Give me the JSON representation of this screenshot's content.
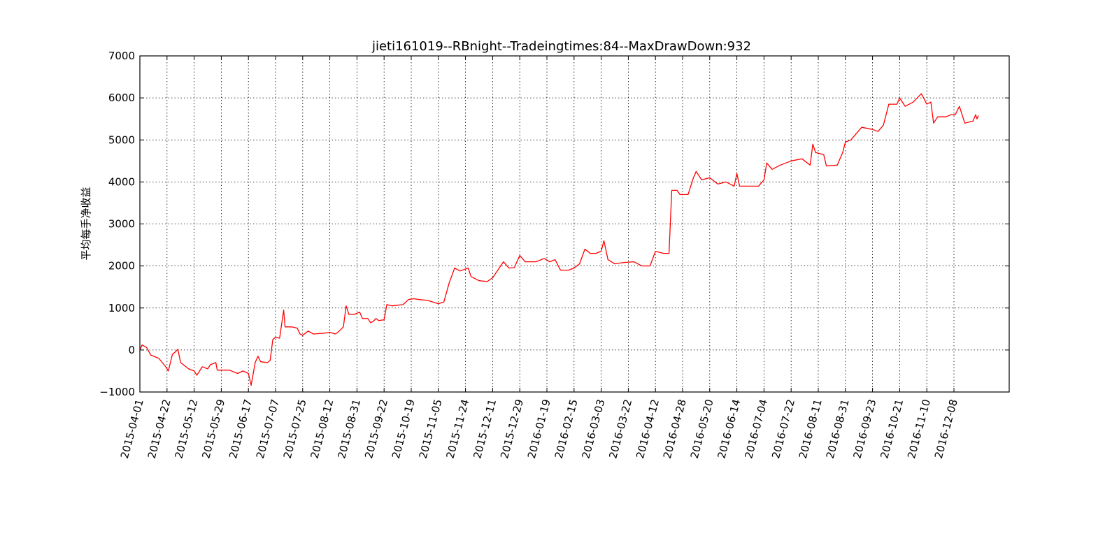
{
  "chart_data": {
    "type": "line",
    "title": "jieti161019--RBnight--Tradeingtimes:84--MaxDrawDown:932",
    "xlabel": "",
    "ylabel": "平均每手净收益",
    "ylim": [
      -1000,
      7000
    ],
    "yticks": [
      -1000,
      0,
      1000,
      2000,
      3000,
      4000,
      5000,
      6000,
      7000
    ],
    "ytick_labels": [
      "−1000",
      "0",
      "1000",
      "2000",
      "3000",
      "4000",
      "5000",
      "6000",
      "7000"
    ],
    "xticks": [
      "2015-04-01",
      "2015-04-22",
      "2015-05-12",
      "2015-05-29",
      "2015-06-17",
      "2015-07-07",
      "2015-07-25",
      "2015-08-12",
      "2015-08-31",
      "2015-09-22",
      "2015-10-19",
      "2015-11-05",
      "2015-11-24",
      "2015-12-11",
      "2015-12-29",
      "2016-01-19",
      "2016-02-15",
      "2016-03-03",
      "2016-03-22",
      "2016-04-12",
      "2016-04-28",
      "2016-05-20",
      "2016-06-14",
      "2016-07-04",
      "2016-07-22",
      "2016-08-11",
      "2016-08-31",
      "2016-09-23",
      "2016-10-21",
      "2016-11-10",
      "2016-12-08"
    ],
    "grid": true,
    "line_color": "#ff0000",
    "series": [
      {
        "values": [
          [
            0,
            0
          ],
          [
            0.08,
            120
          ],
          [
            0.25,
            60
          ],
          [
            0.4,
            -120
          ],
          [
            0.7,
            -200
          ],
          [
            0.95,
            -400
          ],
          [
            1.05,
            -500
          ],
          [
            1.2,
            -100
          ],
          [
            1.3,
            -50
          ],
          [
            1.4,
            20
          ],
          [
            1.5,
            -300
          ],
          [
            1.8,
            -450
          ],
          [
            2.0,
            -500
          ],
          [
            2.1,
            -600
          ],
          [
            2.3,
            -400
          ],
          [
            2.5,
            -450
          ],
          [
            2.6,
            -350
          ],
          [
            2.8,
            -300
          ],
          [
            2.85,
            -480
          ],
          [
            3.3,
            -480
          ],
          [
            3.6,
            -560
          ],
          [
            3.8,
            -500
          ],
          [
            4.0,
            -560
          ],
          [
            4.1,
            -840
          ],
          [
            4.25,
            -300
          ],
          [
            4.35,
            -150
          ],
          [
            4.45,
            -280
          ],
          [
            4.7,
            -300
          ],
          [
            4.8,
            -250
          ],
          [
            4.9,
            250
          ],
          [
            5.0,
            300
          ],
          [
            5.15,
            280
          ],
          [
            5.3,
            950
          ],
          [
            5.35,
            550
          ],
          [
            5.6,
            550
          ],
          [
            5.8,
            520
          ],
          [
            5.9,
            380
          ],
          [
            6.0,
            350
          ],
          [
            6.2,
            450
          ],
          [
            6.4,
            380
          ],
          [
            6.8,
            400
          ],
          [
            7.0,
            420
          ],
          [
            7.2,
            380
          ],
          [
            7.3,
            420
          ],
          [
            7.5,
            550
          ],
          [
            7.6,
            1050
          ],
          [
            7.7,
            850
          ],
          [
            7.9,
            850
          ],
          [
            8.1,
            900
          ],
          [
            8.2,
            750
          ],
          [
            8.4,
            750
          ],
          [
            8.5,
            650
          ],
          [
            8.6,
            680
          ],
          [
            8.7,
            750
          ],
          [
            8.8,
            700
          ],
          [
            9.0,
            720
          ],
          [
            9.1,
            1080
          ],
          [
            9.3,
            1050
          ],
          [
            9.7,
            1080
          ],
          [
            9.9,
            1200
          ],
          [
            10.1,
            1220
          ],
          [
            10.3,
            1200
          ],
          [
            10.6,
            1180
          ],
          [
            10.9,
            1120
          ],
          [
            11.0,
            1100
          ],
          [
            11.2,
            1140
          ],
          [
            11.4,
            1600
          ],
          [
            11.6,
            1950
          ],
          [
            11.8,
            1880
          ],
          [
            12.1,
            1950
          ],
          [
            12.2,
            1750
          ],
          [
            12.5,
            1650
          ],
          [
            12.8,
            1630
          ],
          [
            13.0,
            1720
          ],
          [
            13.4,
            2100
          ],
          [
            13.6,
            1950
          ],
          [
            13.8,
            1960
          ],
          [
            14.0,
            2250
          ],
          [
            14.2,
            2100
          ],
          [
            14.6,
            2100
          ],
          [
            14.9,
            2180
          ],
          [
            15.1,
            2100
          ],
          [
            15.3,
            2150
          ],
          [
            15.5,
            1900
          ],
          [
            15.8,
            1900
          ],
          [
            16.0,
            1950
          ],
          [
            16.2,
            2050
          ],
          [
            16.4,
            2400
          ],
          [
            16.6,
            2300
          ],
          [
            16.8,
            2300
          ],
          [
            17.0,
            2350
          ],
          [
            17.1,
            2600
          ],
          [
            17.25,
            2150
          ],
          [
            17.5,
            2050
          ],
          [
            17.8,
            2080
          ],
          [
            18.2,
            2100
          ],
          [
            18.5,
            2000
          ],
          [
            18.8,
            2000
          ],
          [
            19.0,
            2350
          ],
          [
            19.3,
            2300
          ],
          [
            19.5,
            2300
          ],
          [
            19.6,
            3800
          ],
          [
            19.8,
            3800
          ],
          [
            19.9,
            3700
          ],
          [
            20.2,
            3700
          ],
          [
            20.4,
            4100
          ],
          [
            20.5,
            4250
          ],
          [
            20.7,
            4050
          ],
          [
            21.0,
            4100
          ],
          [
            21.3,
            3950
          ],
          [
            21.6,
            4000
          ],
          [
            21.9,
            3900
          ],
          [
            22.0,
            4200
          ],
          [
            22.1,
            3900
          ],
          [
            22.5,
            3900
          ],
          [
            22.8,
            3900
          ],
          [
            23.0,
            4050
          ],
          [
            23.1,
            4450
          ],
          [
            23.3,
            4300
          ],
          [
            23.6,
            4400
          ],
          [
            24.0,
            4500
          ],
          [
            24.4,
            4550
          ],
          [
            24.7,
            4400
          ],
          [
            24.8,
            4900
          ],
          [
            24.9,
            4700
          ],
          [
            25.2,
            4650
          ],
          [
            25.3,
            4380
          ],
          [
            25.7,
            4400
          ],
          [
            25.9,
            4700
          ],
          [
            26.0,
            4950
          ],
          [
            26.2,
            5000
          ],
          [
            26.4,
            5150
          ],
          [
            26.6,
            5300
          ],
          [
            27.0,
            5250
          ],
          [
            27.2,
            5200
          ],
          [
            27.4,
            5350
          ],
          [
            27.6,
            5850
          ],
          [
            27.9,
            5850
          ],
          [
            28.0,
            6000
          ],
          [
            28.2,
            5800
          ],
          [
            28.5,
            5900
          ],
          [
            28.8,
            6100
          ],
          [
            29.0,
            5850
          ],
          [
            29.15,
            5900
          ],
          [
            29.25,
            5400
          ],
          [
            29.4,
            5550
          ],
          [
            29.7,
            5550
          ],
          [
            29.9,
            5600
          ],
          [
            30.05,
            5600
          ],
          [
            30.2,
            5800
          ],
          [
            30.4,
            5400
          ],
          [
            30.7,
            5450
          ],
          [
            30.8,
            5600
          ],
          [
            30.85,
            5500
          ],
          [
            30.9,
            5580
          ]
        ]
      }
    ]
  }
}
